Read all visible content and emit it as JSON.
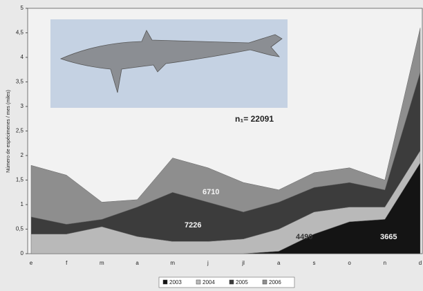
{
  "chart_data": {
    "type": "stacked-area",
    "y_label": "Número de espécimenes / mes (miles)",
    "categories": [
      "e",
      "f",
      "m",
      "a",
      "m",
      "j",
      "jl",
      "a",
      "s",
      "o",
      "n",
      "d"
    ],
    "series": [
      {
        "name": "2003",
        "color": "#141414",
        "values": [
          0,
          0,
          0,
          0,
          0,
          0,
          0,
          0.05,
          0.4,
          0.65,
          0.7,
          1.85
        ]
      },
      {
        "name": "2004",
        "color": "#b9b9b9",
        "values": [
          0.4,
          0.4,
          0.55,
          0.35,
          0.25,
          0.25,
          0.3,
          0.45,
          0.45,
          0.3,
          0.25,
          0.25
        ]
      },
      {
        "name": "2005",
        "color": "#3c3c3c",
        "values": [
          0.35,
          0.2,
          0.15,
          0.6,
          1.0,
          0.8,
          0.55,
          0.55,
          0.5,
          0.5,
          0.35,
          1.6
        ]
      },
      {
        "name": "2006",
        "color": "#8e8e8e",
        "values": [
          1.05,
          1.0,
          0.35,
          0.15,
          0.7,
          0.7,
          0.6,
          0.25,
          0.3,
          0.3,
          0.2,
          0.9
        ]
      }
    ],
    "ylim": [
      0,
      5
    ],
    "yticks": [
      0,
      {
        "value": 0.5,
        "label": "0,5"
      },
      1,
      {
        "value": 1.5,
        "label": "1,5"
      },
      2,
      {
        "value": 2.5,
        "label": "2,5"
      },
      3,
      {
        "value": 3.5,
        "label": "3,5"
      },
      4,
      {
        "value": 4.5,
        "label": "4,5"
      },
      5
    ],
    "annotations": [
      "n₁= 22091",
      "6710",
      "7226",
      "4490",
      "3665"
    ],
    "legend": "bottom"
  }
}
